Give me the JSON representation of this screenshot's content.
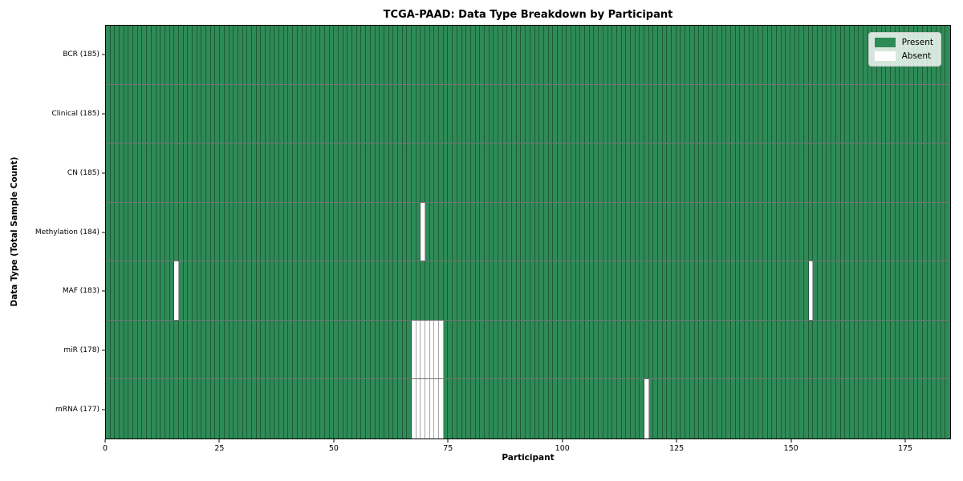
{
  "chart_data": {
    "type": "heatmap",
    "title": "TCGA-PAAD: Data Type Breakdown by Participant",
    "xlabel": "Participant",
    "ylabel": "Data Type (Total Sample Count)",
    "x_range": [
      0,
      185
    ],
    "x_ticks": [
      0,
      25,
      50,
      75,
      100,
      125,
      150,
      175
    ],
    "n_participants": 185,
    "legend_labels": [
      "Present",
      "Absent"
    ],
    "legend_position": "upper right",
    "colors": {
      "present": "#2e8b57",
      "absent": "#ffffff",
      "cell_border": "rgba(0,0,0,0.35)",
      "row_separator": "rgba(0,0,0,0.55)",
      "axis": "#000000"
    },
    "grid": "per-participant cell borders, black row separators",
    "rows": [
      {
        "data_type": "BCR",
        "label": "BCR (185)",
        "present_count": 185,
        "absent_participant_indices": []
      },
      {
        "data_type": "Clinical",
        "label": "Clinical (185)",
        "present_count": 185,
        "absent_participant_indices": []
      },
      {
        "data_type": "CN",
        "label": "CN (185)",
        "present_count": 185,
        "absent_participant_indices": []
      },
      {
        "data_type": "Methylation",
        "label": "Methylation (184)",
        "present_count": 184,
        "absent_participant_indices": [
          69
        ]
      },
      {
        "data_type": "MAF",
        "label": "MAF (183)",
        "present_count": 183,
        "absent_participant_indices": [
          15,
          154
        ]
      },
      {
        "data_type": "miR",
        "label": "miR (178)",
        "present_count": 178,
        "absent_participant_indices": [
          67,
          68,
          69,
          70,
          71,
          72,
          73
        ]
      },
      {
        "data_type": "mRNA",
        "label": "mRNA (177)",
        "present_count": 177,
        "absent_participant_indices": [
          67,
          68,
          69,
          70,
          71,
          72,
          73,
          118
        ]
      }
    ]
  }
}
